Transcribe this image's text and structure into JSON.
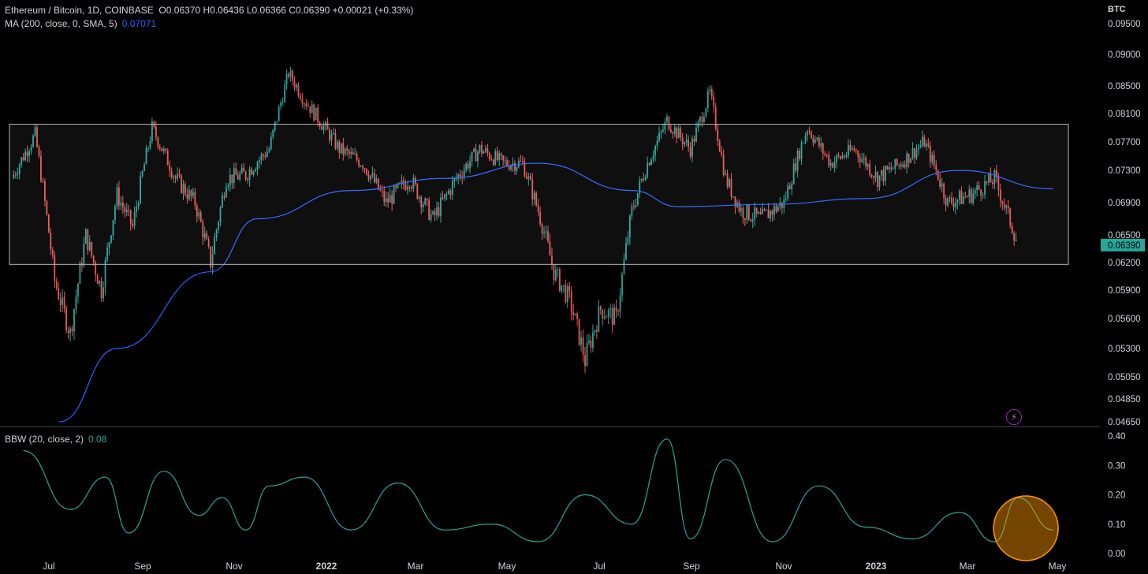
{
  "header": {
    "symbol": "Ethereum / Bitcoin, 1D, COINBASE",
    "open": "O0.06370",
    "high": "H0.06436",
    "low": "L0.06366",
    "close": "C0.06390",
    "change": "+0.00021 (+0.33%)"
  },
  "ma_indicator": {
    "label": "MA (200, close, 0, SMA, 5)",
    "value": "0.07071",
    "color": "#2962ff"
  },
  "bbw_indicator": {
    "label": "BBW (20, close, 2)",
    "value": "0.08",
    "color": "#26a69a"
  },
  "price_axis_unit": "BTC",
  "last_price_badge": "0.06390",
  "colors": {
    "up": "#26a69a",
    "down": "#ef5350",
    "ma": "#2962ff",
    "bbw": "#26a69a",
    "range_box": "#b2b5be",
    "highlight": "#ff9800",
    "alert": "#9c27b0"
  },
  "chart_data": [
    {
      "type": "candlestick",
      "title": "Ethereum / Bitcoin, 1D, COINBASE",
      "yticks": [
        "0.09500",
        "0.09000",
        "0.08500",
        "0.08100",
        "0.07700",
        "0.07300",
        "0.06900",
        "0.06500",
        "0.06200",
        "0.05900",
        "0.05600",
        "0.05300",
        "0.05050",
        "0.04850",
        "0.04650"
      ],
      "ylim": [
        0.0465,
        0.095
      ],
      "xticks": [
        "Jul",
        "Sep",
        "Nov",
        "2022",
        "Mar",
        "May",
        "Jul",
        "Sep",
        "Nov",
        "2023",
        "Mar",
        "May"
      ],
      "series_overview": [
        {
          "t": "Jun 2021",
          "price": 0.072
        },
        {
          "t": "Jun 2021",
          "price": 0.078
        },
        {
          "t": "Jul 2021",
          "price": 0.06
        },
        {
          "t": "Jul 2021",
          "price": 0.0545
        },
        {
          "t": "Jul 2021",
          "price": 0.065
        },
        {
          "t": "Aug 2021",
          "price": 0.059
        },
        {
          "t": "Aug 2021",
          "price": 0.07
        },
        {
          "t": "Aug 2021",
          "price": 0.066
        },
        {
          "t": "Sep 2021",
          "price": 0.079
        },
        {
          "t": "Sep 2021",
          "price": 0.072
        },
        {
          "t": "Oct 2021",
          "price": 0.069
        },
        {
          "t": "Oct 2021",
          "price": 0.062
        },
        {
          "t": "Oct 2021",
          "price": 0.072
        },
        {
          "t": "Nov 2021",
          "price": 0.0725
        },
        {
          "t": "Nov 2021",
          "price": 0.076
        },
        {
          "t": "Dec 2021",
          "price": 0.087
        },
        {
          "t": "Dec 2021",
          "price": 0.083
        },
        {
          "t": "Dec 2021",
          "price": 0.08
        },
        {
          "t": "Jan 2022",
          "price": 0.076
        },
        {
          "t": "Jan 2022",
          "price": 0.074
        },
        {
          "t": "Feb 2022",
          "price": 0.069
        },
        {
          "t": "Feb 2022",
          "price": 0.072
        },
        {
          "t": "Mar 2022",
          "price": 0.067
        },
        {
          "t": "Mar 2022",
          "price": 0.072
        },
        {
          "t": "Apr 2022",
          "price": 0.076
        },
        {
          "t": "Apr 2022",
          "price": 0.074
        },
        {
          "t": "May 2022",
          "price": 0.074
        },
        {
          "t": "May 2022",
          "price": 0.068
        },
        {
          "t": "May 2022",
          "price": 0.061
        },
        {
          "t": "Jun 2022",
          "price": 0.058
        },
        {
          "t": "Jun 2022",
          "price": 0.052
        },
        {
          "t": "Jun 2022",
          "price": 0.057
        },
        {
          "t": "Jul 2022",
          "price": 0.056
        },
        {
          "t": "Jul 2022",
          "price": 0.068
        },
        {
          "t": "Jul 2022",
          "price": 0.074
        },
        {
          "t": "Aug 2022",
          "price": 0.08
        },
        {
          "t": "Aug 2022",
          "price": 0.076
        },
        {
          "t": "Sep 2022",
          "price": 0.084
        },
        {
          "t": "Sep 2022",
          "price": 0.072
        },
        {
          "t": "Sep 2022",
          "price": 0.068
        },
        {
          "t": "Oct 2022",
          "price": 0.067
        },
        {
          "t": "Oct 2022",
          "price": 0.069
        },
        {
          "t": "Nov 2022",
          "price": 0.079
        },
        {
          "t": "Nov 2022",
          "price": 0.074
        },
        {
          "t": "Dec 2022",
          "price": 0.076
        },
        {
          "t": "Dec 2022",
          "price": 0.072
        },
        {
          "t": "Jan 2023",
          "price": 0.074
        },
        {
          "t": "Jan 2023",
          "price": 0.077
        },
        {
          "t": "Feb 2023",
          "price": 0.069
        },
        {
          "t": "Feb 2023",
          "price": 0.07
        },
        {
          "t": "Mar 2023",
          "price": 0.072
        },
        {
          "t": "Mar 2023",
          "price": 0.064
        },
        {
          "t": "Apr 2023",
          "price": 0.064
        }
      ],
      "ma_overview": [
        {
          "t": "Jun 2021",
          "value": 0.0455
        },
        {
          "t": "Aug 2021",
          "value": 0.053
        },
        {
          "t": "Oct 2021",
          "value": 0.061
        },
        {
          "t": "Nov 2021",
          "value": 0.067
        },
        {
          "t": "Jan 2022",
          "value": 0.0705
        },
        {
          "t": "Mar 2022",
          "value": 0.072
        },
        {
          "t": "May 2022",
          "value": 0.074
        },
        {
          "t": "Jul 2022",
          "value": 0.0705
        },
        {
          "t": "Aug 2022",
          "value": 0.0685
        },
        {
          "t": "Oct 2022",
          "value": 0.0688
        },
        {
          "t": "Dec 2022",
          "value": 0.0695
        },
        {
          "t": "Feb 2023",
          "value": 0.073
        },
        {
          "t": "Apr 2023",
          "value": 0.07071
        }
      ],
      "range_box": {
        "upper": 0.0795,
        "lower": 0.0618
      }
    },
    {
      "type": "line",
      "title": "BBW (20, close, 2)",
      "yticks": [
        "0.40",
        "0.30",
        "0.20",
        "0.10",
        "0.00"
      ],
      "ylim": [
        0,
        0.4
      ],
      "values_overview": [
        {
          "t": "Jun 2021",
          "value": 0.35
        },
        {
          "t": "Jul 2021",
          "value": 0.15
        },
        {
          "t": "Aug 2021",
          "value": 0.26
        },
        {
          "t": "Aug 2021",
          "value": 0.07
        },
        {
          "t": "Sep 2021",
          "value": 0.28
        },
        {
          "t": "Oct 2021",
          "value": 0.13
        },
        {
          "t": "Oct 2021",
          "value": 0.19
        },
        {
          "t": "Nov 2021",
          "value": 0.08
        },
        {
          "t": "Nov 2021",
          "value": 0.23
        },
        {
          "t": "Dec 2021",
          "value": 0.26
        },
        {
          "t": "Jan 2022",
          "value": 0.08
        },
        {
          "t": "Feb 2022",
          "value": 0.24
        },
        {
          "t": "Mar 2022",
          "value": 0.08
        },
        {
          "t": "Apr 2022",
          "value": 0.1
        },
        {
          "t": "May 2022",
          "value": 0.04
        },
        {
          "t": "Jun 2022",
          "value": 0.2
        },
        {
          "t": "Jul 2022",
          "value": 0.1
        },
        {
          "t": "Aug 2022",
          "value": 0.39
        },
        {
          "t": "Aug 2022",
          "value": 0.05
        },
        {
          "t": "Sep 2022",
          "value": 0.32
        },
        {
          "t": "Oct 2022",
          "value": 0.04
        },
        {
          "t": "Nov 2022",
          "value": 0.23
        },
        {
          "t": "Dec 2022",
          "value": 0.09
        },
        {
          "t": "Jan 2023",
          "value": 0.05
        },
        {
          "t": "Feb 2023",
          "value": 0.14
        },
        {
          "t": "Mar 2023",
          "value": 0.04
        },
        {
          "t": "Mar 2023",
          "value": 0.19
        },
        {
          "t": "Apr 2023",
          "value": 0.08
        }
      ],
      "highlight": "circled peak, Mar 2023"
    }
  ]
}
